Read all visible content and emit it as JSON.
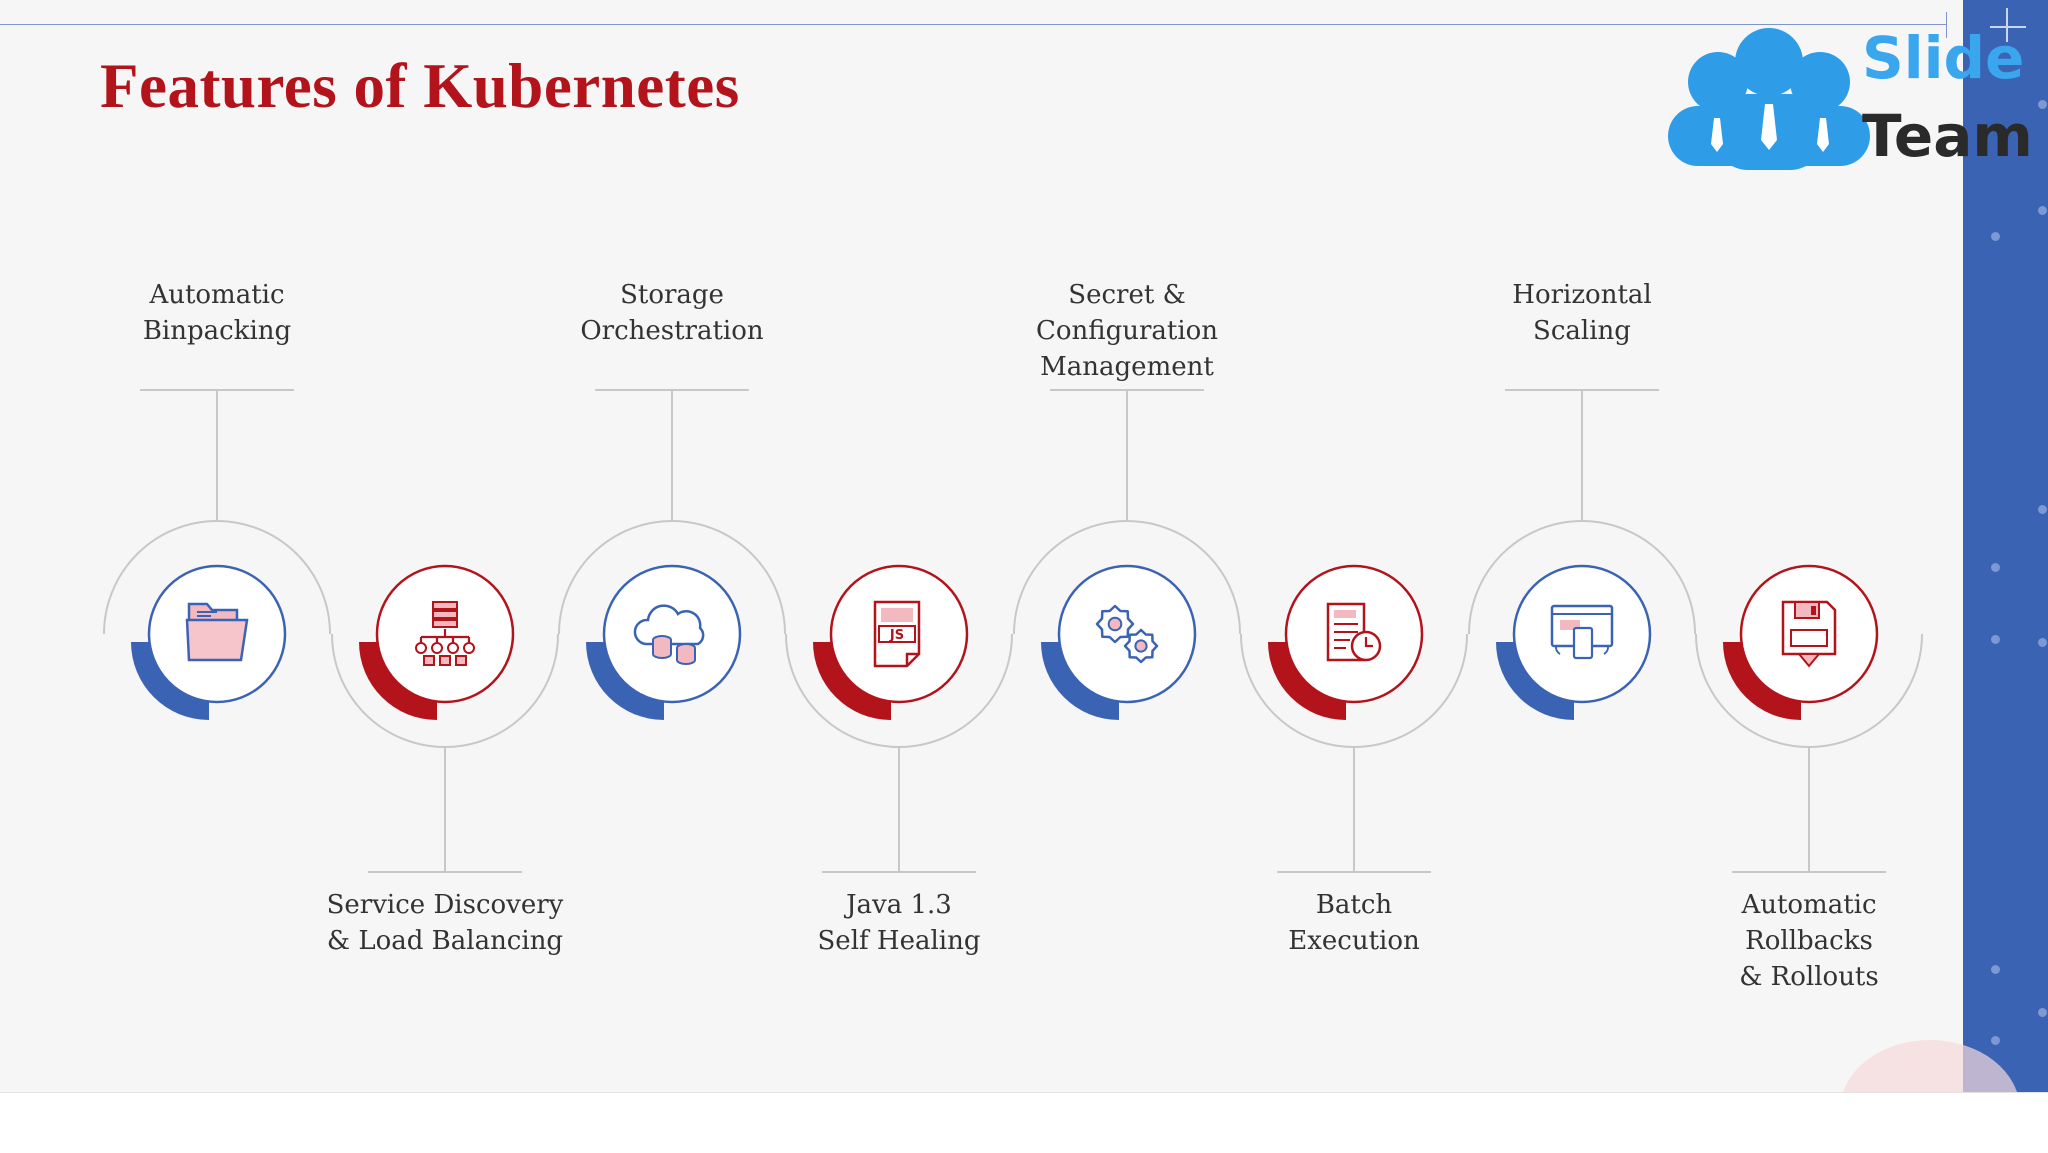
{
  "title": "Features of Kubernetes",
  "logo": {
    "line1": "Slide",
    "line2": "Team"
  },
  "colors": {
    "blue": "#3b63b4",
    "red": "#b3131b",
    "ring": "#c8c8c8"
  },
  "features": [
    {
      "lines": [
        "Automatic",
        "Binpacking"
      ],
      "icon": "folder-icon",
      "color": "blue"
    },
    {
      "lines": [
        "Service Discovery",
        "& Load Balancing"
      ],
      "icon": "network-hierarchy-icon",
      "color": "red"
    },
    {
      "lines": [
        "Storage",
        "Orchestration"
      ],
      "icon": "cloud-database-icon",
      "color": "blue"
    },
    {
      "lines": [
        "Java 1.3",
        "Self  Healing"
      ],
      "icon": "javascript-file-icon",
      "color": "red"
    },
    {
      "lines": [
        "Secret &",
        "Configuration",
        "Management"
      ],
      "icon": "gears-icon",
      "color": "blue"
    },
    {
      "lines": [
        "Batch",
        "Execution"
      ],
      "icon": "document-clock-icon",
      "color": "red"
    },
    {
      "lines": [
        "Horizontal",
        "Scaling"
      ],
      "icon": "responsive-devices-icon",
      "color": "blue"
    },
    {
      "lines": [
        "Automatic",
        "Rollbacks",
        "& Rollouts"
      ],
      "icon": "floppy-disk-icon",
      "color": "red"
    }
  ]
}
